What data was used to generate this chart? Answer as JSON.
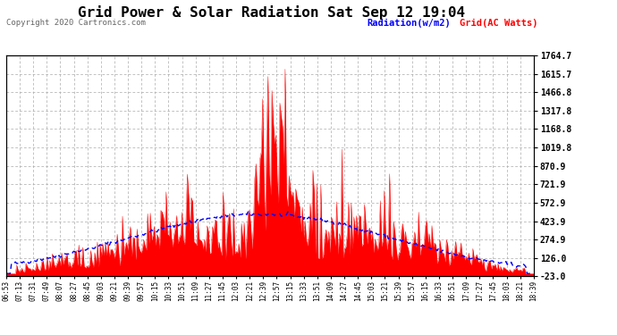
{
  "title": "Grid Power & Solar Radiation Sat Sep 12 19:04",
  "copyright": "Copyright 2020 Cartronics.com",
  "legend_radiation": "Radiation(w/m2)",
  "legend_grid": "Grid(AC Watts)",
  "yticks": [
    -23.0,
    126.0,
    274.9,
    423.9,
    572.9,
    721.9,
    870.9,
    1019.8,
    1168.8,
    1317.8,
    1466.8,
    1615.7,
    1764.7
  ],
  "ytick_labels": [
    "-23.0",
    "126.0",
    "274.9",
    "423.9",
    "572.9",
    "721.9",
    "870.9",
    "1019.8",
    "1168.8",
    "1317.8",
    "1466.8",
    "1615.7",
    "1764.7"
  ],
  "ymin": -23.0,
  "ymax": 1764.7,
  "xtick_labels": [
    "06:53",
    "07:13",
    "07:31",
    "07:49",
    "08:07",
    "08:27",
    "08:45",
    "09:03",
    "09:21",
    "09:39",
    "09:57",
    "10:15",
    "10:33",
    "10:51",
    "11:09",
    "11:27",
    "11:45",
    "12:03",
    "12:21",
    "12:39",
    "12:57",
    "13:15",
    "13:33",
    "13:51",
    "14:09",
    "14:27",
    "14:45",
    "15:03",
    "15:21",
    "15:39",
    "15:57",
    "16:15",
    "16:33",
    "16:51",
    "17:09",
    "17:27",
    "17:45",
    "18:03",
    "18:21",
    "18:39"
  ],
  "bg_color": "#ffffff",
  "plot_bg_color": "#ffffff",
  "title_color": "#000000",
  "grid_color": "#aaaaaa",
  "radiation_color": "#0000ff",
  "grid_series_color": "#ff0000",
  "ytick_color": "#000000",
  "xtick_color": "#000000",
  "n_points": 400
}
